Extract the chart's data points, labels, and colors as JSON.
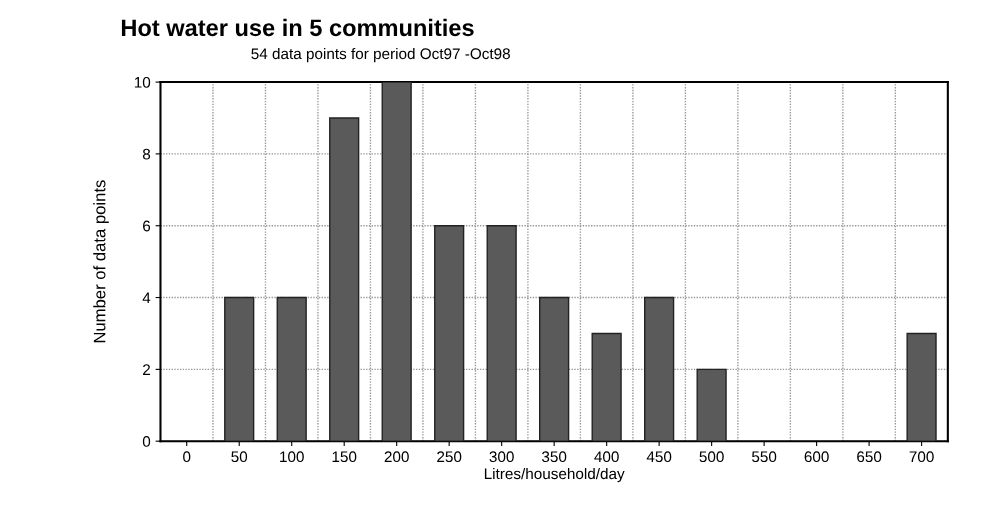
{
  "chart_data": {
    "type": "bar",
    "title": "Hot water use in 5 communities",
    "subtitle": "54 data points for period Oct97 -Oct98",
    "xlabel": "Litres/household/day",
    "ylabel": "Number of data points",
    "categories": [
      "0",
      "50",
      "100",
      "150",
      "200",
      "250",
      "300",
      "350",
      "400",
      "450",
      "500",
      "550",
      "600",
      "650",
      "700"
    ],
    "values": [
      0,
      4,
      4,
      9,
      10,
      6,
      6,
      4,
      3,
      4,
      2,
      0,
      0,
      0,
      3
    ],
    "color": "#5a5a5a",
    "ylim": [
      0,
      10
    ],
    "yticks": [
      0,
      2,
      4,
      6,
      8,
      10
    ],
    "grid": true
  }
}
